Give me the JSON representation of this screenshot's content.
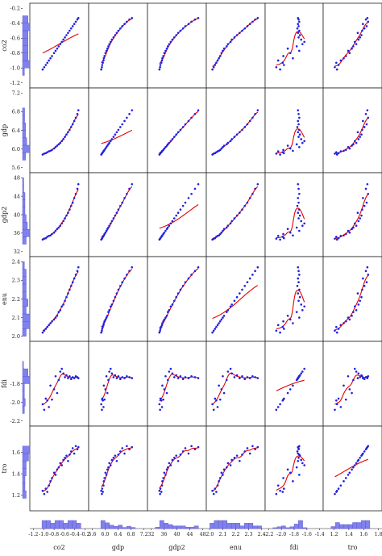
{
  "chart_data": {
    "type": "scatter",
    "kind": "scatterplot-matrix",
    "variables": [
      "co2",
      "gdp",
      "gdp2",
      "enu",
      "fdi",
      "tro"
    ],
    "fit_line_color": "#e60000",
    "point_color": "#2020e0",
    "hist_color": "#8080ee",
    "axes": {
      "co2": {
        "range": [
          -1.2,
          -0.2
        ],
        "ticks": [
          -1.2,
          -1.0,
          -0.8,
          -0.6,
          -0.4,
          -0.2
        ],
        "y_ticks": [
          -1.2,
          -1.0,
          -0.8,
          -0.6,
          -0.4,
          -0.2
        ],
        "tick_labels": [
          "-1.2",
          "-1.0",
          "-0.8",
          "-0.6",
          "-0.4",
          "-0.2"
        ],
        "y_tick_labels": [
          "-1.2",
          "-1.0",
          "-0.8",
          "-0.6",
          "-0.4",
          "-0.2"
        ]
      },
      "gdp": {
        "range": [
          5.6,
          7.2
        ],
        "ticks": [
          5.6,
          6.0,
          6.4,
          6.8,
          7.2
        ],
        "y_ticks": [
          5.6,
          6.0,
          6.4,
          6.8,
          7.2
        ],
        "tick_labels": [
          "5.6",
          "6.0",
          "6.4",
          "6.8",
          "7.2"
        ],
        "y_tick_labels": [
          "5.6",
          "6.0",
          "6.4",
          "6.8",
          "7.2"
        ]
      },
      "gdp2": {
        "range": [
          32,
          48
        ],
        "ticks": [
          32,
          36,
          40,
          44,
          48
        ],
        "y_ticks": [
          32,
          36,
          40,
          44,
          48
        ],
        "tick_labels": [
          "32",
          "36",
          "40",
          "44",
          "48"
        ],
        "y_tick_labels": [
          "32",
          "36",
          "40",
          "44",
          "48"
        ]
      },
      "enu": {
        "range": [
          2.0,
          2.4
        ],
        "ticks": [
          2.0,
          2.1,
          2.2,
          2.3,
          2.4
        ],
        "y_ticks": [
          2.0,
          2.1,
          2.2,
          2.3,
          2.4
        ],
        "tick_labels": [
          "2.0",
          "2.1",
          "2.2",
          "2.3",
          "2.4"
        ],
        "y_tick_labels": [
          "2.0",
          "2.1",
          "2.2",
          "2.3",
          "2.4"
        ]
      },
      "fdi": {
        "range": [
          -2.2,
          -1.4
        ],
        "ticks": [
          -2.2,
          -2.0,
          -1.8,
          -1.6,
          -1.4
        ],
        "y_ticks": [
          -2.2,
          -2.0,
          -1.8
        ],
        "tick_labels": [
          "-2.2",
          "-2.0",
          "-1.8",
          "-1.6",
          "-1.4"
        ],
        "y_tick_labels": [
          "-2.2",
          "-2.0",
          "-1.8"
        ]
      },
      "tro": {
        "range": [
          1.1,
          1.8
        ],
        "ticks": [
          1.2,
          1.4,
          1.6,
          1.8
        ],
        "y_ticks": [
          1.2,
          1.4,
          1.6
        ],
        "tick_labels": [
          "1.2",
          "1.4",
          "1.6",
          "1.8"
        ],
        "y_tick_labels": [
          "1.2",
          "1.4",
          "1.6"
        ]
      }
    },
    "observations": {
      "co2": [
        -1.02,
        -0.99,
        -0.96,
        -0.93,
        -0.9,
        -0.87,
        -0.84,
        -0.8,
        -0.77,
        -0.74,
        -0.71,
        -0.68,
        -0.65,
        -0.62,
        -0.59,
        -0.56,
        -0.53,
        -0.5,
        -0.47,
        -0.44,
        -0.41,
        -0.38,
        -0.35,
        -0.33
      ],
      "gdp": [
        5.88,
        5.9,
        5.91,
        5.93,
        5.95,
        5.96,
        5.98,
        6.01,
        6.04,
        6.07,
        6.1,
        6.13,
        6.17,
        6.21,
        6.26,
        6.31,
        6.36,
        6.41,
        6.47,
        6.53,
        6.6,
        6.67,
        6.75,
        6.83
      ],
      "gdp2": [
        34.6,
        34.8,
        34.9,
        35.2,
        35.4,
        35.5,
        35.8,
        36.1,
        36.5,
        36.9,
        37.2,
        37.6,
        38.1,
        38.6,
        39.2,
        39.8,
        40.4,
        41.1,
        41.9,
        42.6,
        43.6,
        44.5,
        45.6,
        46.6
      ],
      "enu": [
        2.02,
        2.03,
        2.04,
        2.05,
        2.06,
        2.07,
        2.08,
        2.09,
        2.1,
        2.11,
        2.13,
        2.14,
        2.16,
        2.17,
        2.19,
        2.21,
        2.23,
        2.25,
        2.27,
        2.29,
        2.31,
        2.33,
        2.35,
        2.37
      ],
      "fdi": [
        -2.02,
        -2.08,
        -1.96,
        -1.98,
        -2.05,
        -1.82,
        -1.97,
        -1.86,
        -1.72,
        -1.9,
        -1.76,
        -1.67,
        -1.64,
        -1.69,
        -1.73,
        -1.71,
        -1.74,
        -1.72,
        -1.75,
        -1.73,
        -1.74,
        -1.72,
        -1.73,
        -1.74
      ],
      "tro": [
        1.24,
        1.21,
        1.26,
        1.23,
        1.29,
        1.33,
        1.36,
        1.41,
        1.39,
        1.44,
        1.46,
        1.5,
        1.48,
        1.53,
        1.55,
        1.57,
        1.52,
        1.58,
        1.61,
        1.64,
        1.59,
        1.66,
        1.63,
        1.65
      ]
    }
  }
}
